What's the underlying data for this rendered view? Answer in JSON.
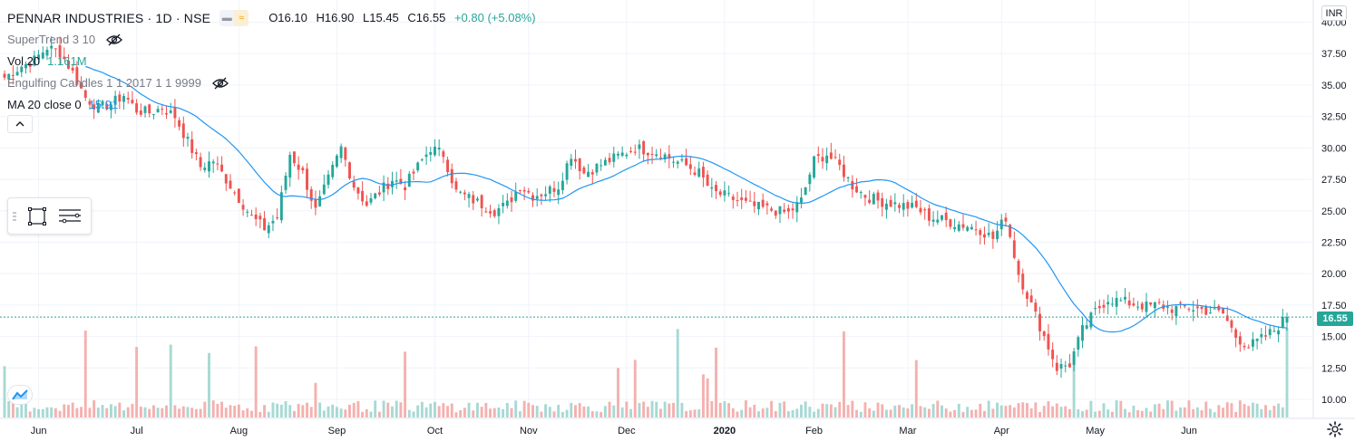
{
  "header": {
    "symbol_title": "PENNAR INDUSTRIES · 1D · NSE",
    "btn_icon_1": "minus-icon",
    "btn_icon_2": "wave-icon",
    "open": "O16.10",
    "high": "H16.90",
    "low": "L15.45",
    "close": "C16.55",
    "change": "+0.80 (+5.08%)"
  },
  "indicators": [
    {
      "name": "SuperTrend 3 10",
      "value": "",
      "hidden": true
    },
    {
      "name": "Vol 20",
      "value": "1.161M",
      "hidden": false
    },
    {
      "name": "Engulfing Candles 1 1 2017 1 1 9999",
      "value": "",
      "hidden": true
    },
    {
      "name": "MA 20 close 0",
      "value": "15.91",
      "hidden": false
    }
  ],
  "price_axis": {
    "currency": "INR",
    "last_price_label": "16.55",
    "ticks": [
      "40.00",
      "37.50",
      "35.00",
      "32.50",
      "30.00",
      "27.50",
      "25.00",
      "22.50",
      "20.00",
      "17.50",
      "15.00",
      "12.50",
      "10.00"
    ]
  },
  "time_axis": {
    "labels": [
      "Jun",
      "Jul",
      "Aug",
      "Sep",
      "Oct",
      "Nov",
      "Dec",
      "2020",
      "Feb",
      "Mar",
      "Apr",
      "May",
      "Jun"
    ]
  },
  "colors": {
    "up": "#26a69a",
    "down": "#ef5350",
    "vol_up": "#a7d9d4",
    "vol_down": "#f4b1af",
    "ma": "#2196f3",
    "grid": "#f0f3fa",
    "axis_text": "#131722"
  },
  "chart_data": {
    "type": "candlestick",
    "title": "PENNAR INDUSTRIES · 1D · NSE",
    "ylim": [
      8.5,
      40.7
    ],
    "y_scale": "linear",
    "grid": true,
    "months": [
      "Jun",
      "Jul",
      "Aug",
      "Sep",
      "Oct",
      "Nov",
      "Dec",
      "2020",
      "Feb",
      "Mar",
      "Apr",
      "May",
      "Jun"
    ],
    "close_anchors": [
      [
        0,
        35.6
      ],
      [
        4,
        36.5
      ],
      [
        7,
        37.0
      ],
      [
        10,
        38.0
      ],
      [
        13,
        37.6
      ],
      [
        16,
        36.0
      ],
      [
        19,
        34.0
      ],
      [
        22,
        33.2
      ],
      [
        25,
        33.5
      ],
      [
        28,
        34.2
      ],
      [
        31,
        33.0
      ],
      [
        34,
        32.8
      ],
      [
        37,
        33.2
      ],
      [
        40,
        32.5
      ],
      [
        43,
        30.5
      ],
      [
        46,
        28.5
      ],
      [
        49,
        29.0
      ],
      [
        52,
        27.5
      ],
      [
        55,
        26.0
      ],
      [
        58,
        24.5
      ],
      [
        61,
        23.6
      ],
      [
        64,
        24.5
      ],
      [
        67,
        29.5
      ],
      [
        70,
        28.0
      ],
      [
        73,
        25.0
      ],
      [
        76,
        27.5
      ],
      [
        79,
        30.0
      ],
      [
        82,
        27.0
      ],
      [
        85,
        25.5
      ],
      [
        88,
        26.5
      ],
      [
        91,
        27.5
      ],
      [
        94,
        27.0
      ],
      [
        97,
        28.5
      ],
      [
        100,
        30.0
      ],
      [
        103,
        29.5
      ],
      [
        106,
        26.5
      ],
      [
        109,
        26.0
      ],
      [
        112,
        25.5
      ],
      [
        115,
        25.0
      ],
      [
        118,
        25.5
      ],
      [
        121,
        27.0
      ],
      [
        124,
        26.2
      ],
      [
        127,
        26.5
      ],
      [
        130,
        27.0
      ],
      [
        133,
        29.5
      ],
      [
        136,
        28.0
      ],
      [
        139,
        28.5
      ],
      [
        142,
        29.0
      ],
      [
        145,
        29.5
      ],
      [
        148,
        30.0
      ],
      [
        151,
        29.8
      ],
      [
        154,
        29.6
      ],
      [
        157,
        29.0
      ],
      [
        160,
        28.6
      ],
      [
        163,
        28.0
      ],
      [
        166,
        26.5
      ],
      [
        169,
        26.2
      ],
      [
        172,
        25.8
      ],
      [
        175,
        25.4
      ],
      [
        178,
        25.2
      ],
      [
        181,
        25.0
      ],
      [
        184,
        24.8
      ],
      [
        187,
        25.8
      ],
      [
        190,
        29.0
      ],
      [
        193,
        29.5
      ],
      [
        196,
        28.5
      ],
      [
        199,
        27.0
      ],
      [
        202,
        26.2
      ],
      [
        205,
        25.8
      ],
      [
        208,
        25.6
      ],
      [
        211,
        25.4
      ],
      [
        214,
        25.2
      ],
      [
        217,
        24.5
      ],
      [
        220,
        24.3
      ],
      [
        223,
        24.0
      ],
      [
        226,
        23.8
      ],
      [
        229,
        23.5
      ],
      [
        232,
        22.8
      ],
      [
        235,
        24.5
      ],
      [
        238,
        20.0
      ],
      [
        241,
        17.5
      ],
      [
        244,
        15.0
      ],
      [
        247,
        12.5
      ],
      [
        250,
        12.8
      ],
      [
        253,
        15.5
      ],
      [
        256,
        17.0
      ],
      [
        259,
        18.0
      ],
      [
        262,
        17.8
      ],
      [
        265,
        17.6
      ],
      [
        268,
        17.4
      ],
      [
        271,
        17.5
      ],
      [
        274,
        17.2
      ],
      [
        277,
        17.3
      ],
      [
        280,
        17.2
      ],
      [
        283,
        17.0
      ],
      [
        286,
        16.8
      ],
      [
        289,
        15.0
      ],
      [
        292,
        14.2
      ],
      [
        295,
        14.8
      ],
      [
        298,
        15.5
      ],
      [
        301,
        16.55
      ]
    ],
    "n_bars": 302,
    "last_close": 16.55,
    "last_open": 16.1,
    "last_high": 16.9,
    "last_low": 15.45,
    "ma_period": 20,
    "ma_last": 15.91,
    "volume_last": "1.161M"
  }
}
